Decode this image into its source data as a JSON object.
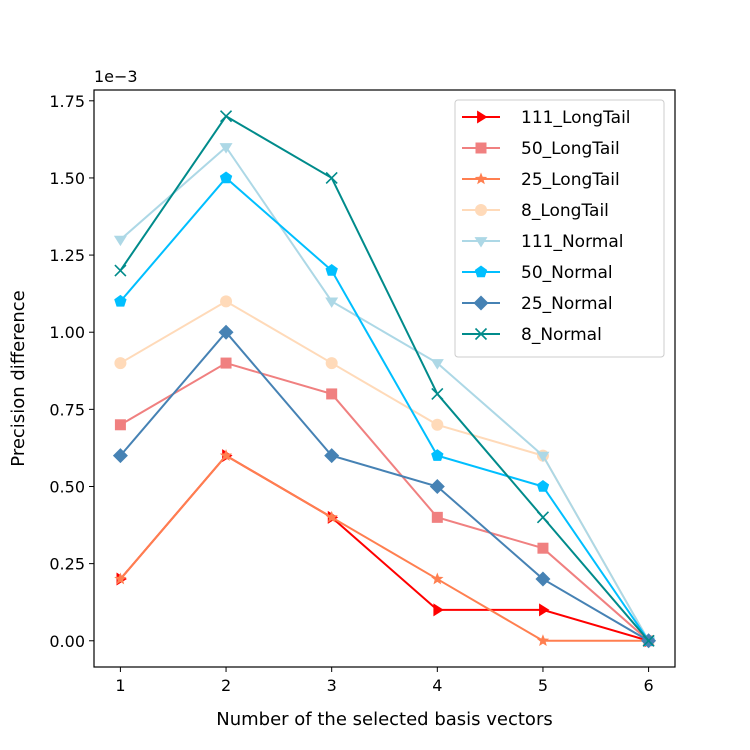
{
  "chart_data": {
    "type": "line",
    "xlabel": "Number of the selected basis vectors",
    "ylabel": "Precision difference",
    "offset_label": "1e−3",
    "x": [
      1,
      2,
      3,
      4,
      5,
      6
    ],
    "x_ticks": [
      1,
      2,
      3,
      4,
      5,
      6
    ],
    "x_tick_labels": [
      "1",
      "2",
      "3",
      "4",
      "5",
      "6"
    ],
    "y_ticks": [
      0,
      0.25,
      0.5,
      0.75,
      1.0,
      1.25,
      1.5,
      1.75
    ],
    "y_tick_labels": [
      "0.00",
      "0.25",
      "0.50",
      "0.75",
      "1.00",
      "1.25",
      "1.50",
      "1.75"
    ],
    "xlim": [
      0.75,
      6.25
    ],
    "ylim": [
      -0.085,
      1.785
    ],
    "grid": false,
    "legend_position": "top-right",
    "series": [
      {
        "name": "111_LongTail",
        "color": "#ff0000",
        "marker": "triangle-right",
        "values": [
          0.2,
          0.6,
          0.4,
          0.1,
          0.1,
          0.0
        ]
      },
      {
        "name": "50_LongTail",
        "color": "#f08080",
        "marker": "square",
        "values": [
          0.7,
          0.9,
          0.8,
          0.4,
          0.3,
          0.0
        ]
      },
      {
        "name": "25_LongTail",
        "color": "#ff7f50",
        "marker": "star",
        "values": [
          0.2,
          0.6,
          0.4,
          0.2,
          0.0,
          0.0
        ]
      },
      {
        "name": "8_LongTail",
        "color": "#ffdab9",
        "marker": "circle",
        "values": [
          0.9,
          1.1,
          0.9,
          0.7,
          0.6,
          0.0
        ]
      },
      {
        "name": "111_Normal",
        "color": "#add8e6",
        "marker": "triangle-down",
        "values": [
          1.3,
          1.6,
          1.1,
          0.9,
          0.6,
          0.0
        ]
      },
      {
        "name": "50_Normal",
        "color": "#00bfff",
        "marker": "pentagon",
        "values": [
          1.1,
          1.5,
          1.2,
          0.6,
          0.5,
          0.0
        ]
      },
      {
        "name": "25_Normal",
        "color": "#4682b4",
        "marker": "diamond",
        "values": [
          0.6,
          1.0,
          0.6,
          0.5,
          0.2,
          0.0
        ]
      },
      {
        "name": "8_Normal",
        "color": "#008b8b",
        "marker": "x",
        "values": [
          1.2,
          1.7,
          1.5,
          0.8,
          0.4,
          0.0
        ]
      }
    ]
  }
}
